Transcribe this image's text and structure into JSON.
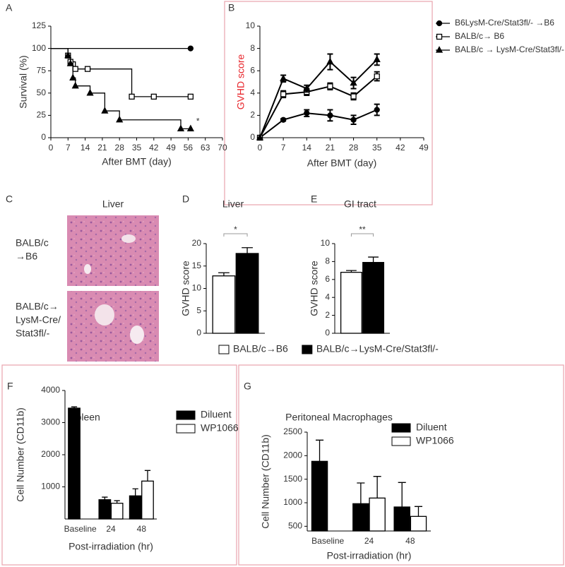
{
  "chart_data": [
    {
      "panel": "A",
      "type": "step",
      "xlabel": "After BMT (day)",
      "ylabel": "Survival (%)",
      "xlim": [
        0,
        70
      ],
      "xticks": [
        0,
        7,
        14,
        21,
        28,
        35,
        42,
        49,
        56,
        63,
        70
      ],
      "ylim": [
        0,
        125
      ],
      "yticks": [
        0,
        25,
        50,
        75,
        100,
        125
      ],
      "annotation": "*",
      "series": [
        {
          "marker": "circle",
          "color": "#000000",
          "x": [
            0,
            57
          ],
          "values": [
            100,
            100
          ]
        },
        {
          "marker": "square",
          "color": "#000000",
          "x": [
            0,
            7,
            8,
            10,
            15,
            33,
            42,
            57
          ],
          "values": [
            100,
            92,
            85,
            77,
            77,
            46,
            46,
            46
          ]
        },
        {
          "marker": "triangle",
          "color": "#000000",
          "x": [
            0,
            7,
            8,
            9,
            10,
            16,
            22,
            28,
            53,
            57
          ],
          "values": [
            100,
            92,
            83,
            67,
            58,
            50,
            30,
            20,
            10,
            10
          ]
        }
      ]
    },
    {
      "panel": "B",
      "type": "line",
      "xlabel": "After BMT (day)",
      "ylabel": "GVHD score",
      "ylabel_color": "#e8262c",
      "x": [
        0,
        7,
        14,
        21,
        28,
        35
      ],
      "xlim": [
        0,
        49
      ],
      "xticks": [
        0,
        7,
        14,
        21,
        28,
        35,
        42,
        49
      ],
      "ylim": [
        0,
        10
      ],
      "yticks": [
        0,
        2,
        4,
        6,
        8,
        10
      ],
      "series": [
        {
          "name": "B6LysM-Cre/Stat3fl/- →B6",
          "marker": "circle",
          "color": "#000000",
          "values": [
            0,
            1.6,
            2.2,
            2.0,
            1.6,
            2.5
          ],
          "errors": [
            0,
            0.1,
            0.3,
            0.5,
            0.4,
            0.5
          ]
        },
        {
          "name": "BALB/c→ B6",
          "marker": "square",
          "color": "#000000",
          "values": [
            0,
            3.9,
            4.1,
            4.6,
            3.7,
            5.5
          ],
          "errors": [
            0,
            0.3,
            0.3,
            0.3,
            0.3,
            0.4
          ]
        },
        {
          "name": "BALB/c → LysM-Cre/Stat3fl/-",
          "marker": "triangle",
          "color": "#000000",
          "values": [
            0,
            5.3,
            4.4,
            6.8,
            4.9,
            7.0
          ],
          "errors": [
            0,
            0.3,
            0.3,
            0.7,
            0.5,
            0.5
          ]
        }
      ]
    },
    {
      "panel": "D",
      "type": "bar",
      "title": "Liver",
      "ylabel": "GVHD score",
      "categories": [
        null
      ],
      "ylim": [
        0,
        20
      ],
      "yticks": [
        0,
        5,
        10,
        15,
        20
      ],
      "annotation": "*",
      "series": [
        {
          "name": "BALB/c→B6",
          "color": "#ffffff",
          "values": [
            12.8
          ],
          "errors": [
            0.7
          ]
        },
        {
          "name": "BALB/c→LysM-Cre/Stat3fl/-",
          "color": "#000000",
          "values": [
            17.8
          ],
          "errors": [
            1.3
          ]
        }
      ]
    },
    {
      "panel": "E",
      "type": "bar",
      "title": "GI tract",
      "ylabel": "GVHD score",
      "categories": [
        null
      ],
      "ylim": [
        0,
        10
      ],
      "yticks": [
        0,
        2,
        4,
        6,
        8,
        10
      ],
      "annotation": "**",
      "series": [
        {
          "color": "#ffffff",
          "values": [
            6.8
          ],
          "errors": [
            0.2
          ]
        },
        {
          "color": "#000000",
          "values": [
            7.9
          ],
          "errors": [
            0.6
          ]
        }
      ]
    },
    {
      "panel": "F",
      "type": "bar",
      "title": "Spleen",
      "xlabel": "Post-irradiation (hr)",
      "ylabel": "Cell Number (CD11b)",
      "categories": [
        "Baseline",
        "24",
        "48"
      ],
      "ylim": [
        0,
        4000
      ],
      "yticks": [
        1000,
        2000,
        3000,
        4000
      ],
      "series": [
        {
          "name": "Diluent",
          "color": "#000000",
          "values": [
            3450,
            600,
            720
          ],
          "errors": [
            40,
            80,
            220
          ]
        },
        {
          "name": "WP1066",
          "color": "#ffffff",
          "values": [
            null,
            490,
            1180
          ],
          "errors": [
            null,
            80,
            330
          ]
        }
      ]
    },
    {
      "panel": "G",
      "type": "bar",
      "title": "Peritoneal Macrophages",
      "xlabel": "Post-irradiation (hr)",
      "ylabel": "Cell Number (CD11b)",
      "categories": [
        "Baseline",
        "24",
        "48"
      ],
      "ylim": [
        400,
        2500
      ],
      "yticks": [
        500,
        1000,
        1500,
        2000,
        2500
      ],
      "series": [
        {
          "name": "Diluent",
          "color": "#000000",
          "values": [
            1880,
            980,
            910
          ],
          "errors": [
            450,
            440,
            520
          ]
        },
        {
          "name": "WP1066",
          "color": "#ffffff",
          "values": [
            null,
            1100,
            710
          ],
          "errors": [
            null,
            460,
            210
          ]
        }
      ]
    }
  ],
  "panel_c": {
    "panel": "C",
    "title": "Liver",
    "labels": [
      [
        "BALB/c",
        "→B6"
      ],
      [
        "BALB/c→",
        "LysM-Cre/",
        "Stat3fl/-"
      ]
    ]
  }
}
